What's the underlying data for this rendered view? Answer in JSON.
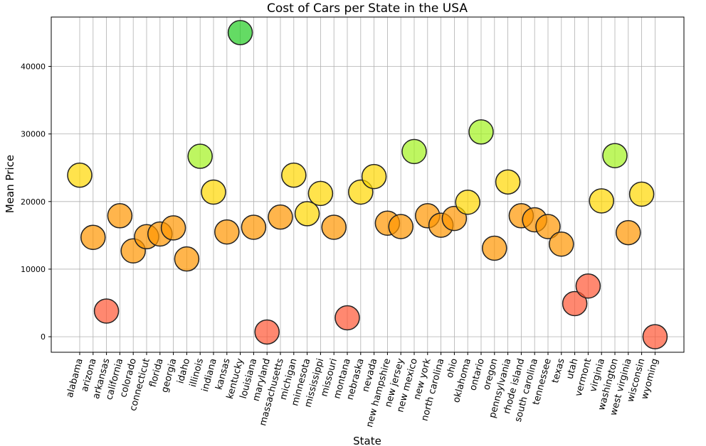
{
  "chart_data": {
    "type": "scatter",
    "title": "Cost of Cars per State in the USA",
    "xlabel": "State",
    "ylabel": "Mean Price",
    "ylim": [
      -2300,
      47300
    ],
    "yticks": [
      0,
      10000,
      20000,
      30000,
      40000
    ],
    "grid": true,
    "categories": [
      "alabama",
      "arizona",
      "arkansas",
      "california",
      "colorado",
      "connecticut",
      "florida",
      "georgia",
      "idaho",
      "illinois",
      "indiana",
      "kansas",
      "kentucky",
      "louisiana",
      "maryland",
      "massachusetts",
      "michigan",
      "minnesota",
      "mississippi",
      "missouri",
      "montana",
      "nebraska",
      "nevada",
      "new hampshire",
      "new jersey",
      "new mexico",
      "new york",
      "north carolina",
      "ohio",
      "oklahoma",
      "ontario",
      "oregon",
      "pennsylvania",
      "rhode island",
      "south carolina",
      "tennessee",
      "texas",
      "utah",
      "vermont",
      "virginia",
      "washington",
      "west virginia",
      "wisconsin",
      "wyoming"
    ],
    "values": [
      23900,
      14700,
      3800,
      17900,
      12700,
      14800,
      15200,
      16100,
      11500,
      26700,
      21400,
      15500,
      45000,
      16200,
      700,
      17700,
      23900,
      18200,
      21200,
      16200,
      2800,
      21400,
      23700,
      16800,
      16300,
      27400,
      17900,
      16500,
      17500,
      19900,
      30300,
      13100,
      22900,
      17900,
      17300,
      16300,
      13700,
      4900,
      7500,
      20100,
      26800,
      15400,
      21100,
      0
    ],
    "colors": {
      "green": "#22cc22",
      "lime": "#a2f21e",
      "yellow": "#ffd700",
      "orange": "#ff9500",
      "red": "#ff5533"
    }
  }
}
